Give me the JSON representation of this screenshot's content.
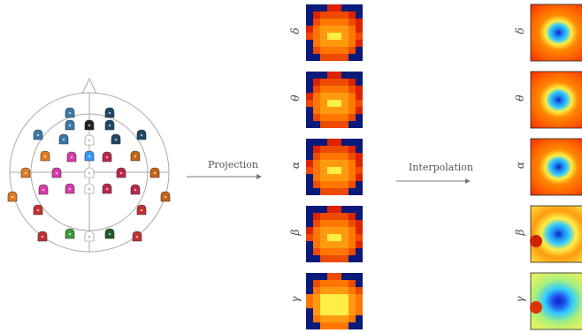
{
  "labels": {
    "projection": "Projection",
    "interpolation": "Interpolation"
  },
  "bands": [
    {
      "key": "delta",
      "symbol": "δ"
    },
    {
      "key": "theta",
      "symbol": "θ"
    },
    {
      "key": "alpha",
      "symbol": "α"
    },
    {
      "key": "beta",
      "symbol": "β"
    },
    {
      "key": "gamma",
      "symbol": "γ"
    }
  ],
  "colors": {
    "head_outline": "#aaaaaa",
    "arrow": "#777777",
    "grid_dark": "#0a1a7a",
    "grid_red": "#dd2200",
    "grid_orange": "#ff7700",
    "grid_yellow": "#ffee44",
    "interp_blue": "#0a22cc",
    "interp_cyan": "#33ccff"
  },
  "electrode_colors": {
    "steelblue": "#3a78a8",
    "darknavy": "#1e4766",
    "black": "#222222",
    "white": "#ffffff",
    "brightblue": "#3399ff",
    "orange": "#e07a1e",
    "magenta": "#d83aaa",
    "crimson": "#b8284a",
    "darkorange": "#c46414",
    "red": "#c23030",
    "green": "#3a9a3a",
    "darkgreen": "#1f5a28"
  }
}
